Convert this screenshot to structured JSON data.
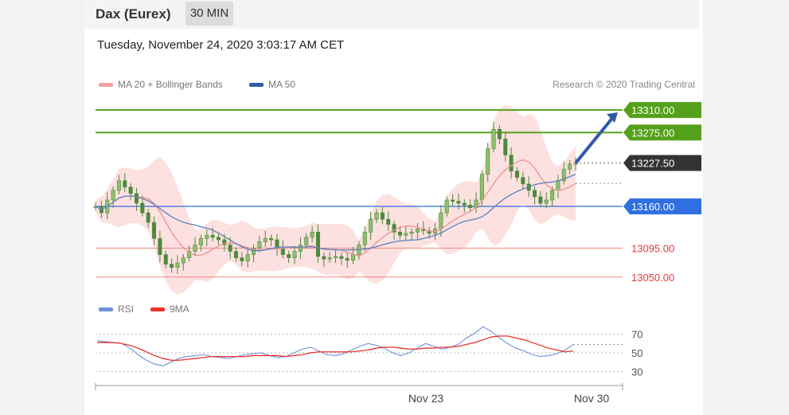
{
  "header": {
    "instrument": "Dax (Eurex)",
    "interval": "30 MIN",
    "datetime": "Tuesday, November 24, 2020 3:03:17 AM CET"
  },
  "legend": {
    "ma20": "MA 20 + Bollinger Bands",
    "ma50": "MA 50",
    "rsi": "RSI",
    "ma9": "9MA"
  },
  "credit": "Research © 2020 Trading Central",
  "colors": {
    "candle": "#4d8a3a",
    "bollinger": "#fcd8d8",
    "ma20": "#e99494",
    "ma50": "#5b82c0",
    "rsi": "#6e92d8",
    "ma9": "#e8322c",
    "resistance": "#55a01a",
    "support": "#2f6fe0",
    "target": "#e13b3b",
    "current": "#333333",
    "arrow": "#2f5aa8"
  },
  "chart_data": [
    {
      "type": "line",
      "ylim": [
        13020,
        13335
      ],
      "levels": [
        {
          "value": 13310,
          "label": "13310.00",
          "kind": "resistance"
        },
        {
          "value": 13275,
          "label": "13275.00",
          "kind": "resistance"
        },
        {
          "value": 13227.5,
          "label": "13227.50",
          "kind": "current"
        },
        {
          "value": 13160,
          "label": "13160.00",
          "kind": "support"
        },
        {
          "value": 13095,
          "label": "13095.00",
          "kind": "target"
        },
        {
          "value": 13050,
          "label": "13050.00",
          "kind": "target"
        }
      ],
      "close": [
        13160,
        13150,
        13170,
        13185,
        13200,
        13190,
        13180,
        13165,
        13150,
        13135,
        13110,
        13085,
        13070,
        13065,
        13072,
        13080,
        13090,
        13100,
        13110,
        13115,
        13112,
        13108,
        13100,
        13090,
        13080,
        13075,
        13085,
        13095,
        13105,
        13110,
        13108,
        13095,
        13085,
        13080,
        13090,
        13100,
        13112,
        13120,
        13082,
        13078,
        13080,
        13082,
        13079,
        13076,
        13085,
        13100,
        13120,
        13140,
        13150,
        13140,
        13132,
        13120,
        13115,
        13118,
        13120,
        13125,
        13122,
        13118,
        13125,
        13150,
        13170,
        13168,
        13165,
        13162,
        13158,
        13170,
        13210,
        13250,
        13280,
        13265,
        13240,
        13215,
        13205,
        13195,
        13185,
        13175,
        13165,
        13170,
        13185,
        13200,
        13218,
        13226,
        13227.5
      ],
      "ma20_end": 13185,
      "ma50_end": 13180
    },
    {
      "type": "line",
      "ylim": [
        20,
        85
      ],
      "yticks": [
        70,
        50,
        30
      ],
      "xticks": [
        "Nov 23",
        "Nov 30"
      ],
      "series": [
        {
          "name": "RSI",
          "values": [
            63,
            62,
            61,
            60,
            55,
            48,
            42,
            38,
            36,
            40,
            44,
            46,
            47,
            48,
            46,
            45,
            44,
            46,
            48,
            49,
            50,
            47,
            45,
            46,
            50,
            54,
            56,
            52,
            48,
            47,
            49,
            53,
            57,
            60,
            58,
            55,
            50,
            47,
            50,
            55,
            60,
            57,
            54,
            56,
            59,
            66,
            71,
            78,
            73,
            66,
            60,
            55,
            52,
            48,
            46,
            47,
            49,
            53,
            59
          ]
        },
        {
          "name": "9MA",
          "values": [
            61,
            61,
            61,
            60,
            58,
            55,
            51,
            47,
            44,
            42,
            42,
            43,
            44,
            45,
            46,
            46,
            46,
            46,
            46,
            47,
            47,
            47,
            47,
            46,
            47,
            48,
            50,
            51,
            51,
            51,
            51,
            51,
            52,
            53,
            55,
            56,
            56,
            55,
            54,
            54,
            55,
            55,
            56,
            56,
            57,
            59,
            61,
            64,
            67,
            68,
            68,
            66,
            64,
            61,
            58,
            55,
            53,
            51,
            52
          ]
        }
      ]
    }
  ]
}
